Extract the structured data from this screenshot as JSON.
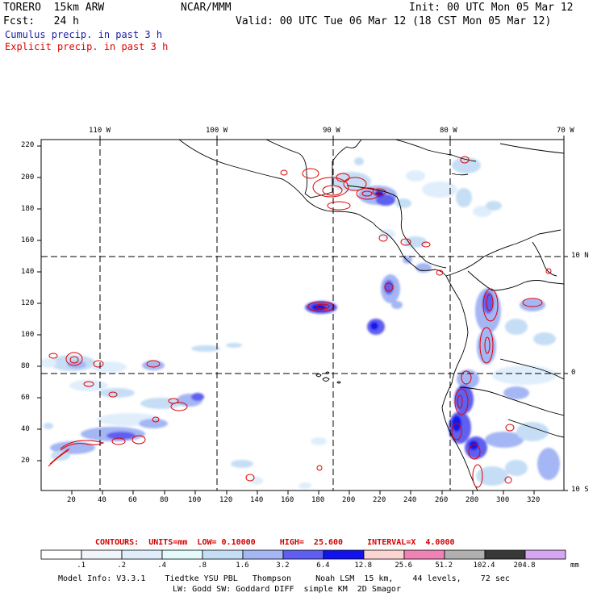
{
  "header": {
    "model": "TORERO  15km ARW",
    "center": "NCAR/MMM",
    "init": "Init: 00 UTC Mon 05 Mar 12",
    "fcst": "Fcst:   24 h",
    "valid": "Valid: 00 UTC Tue 06 Mar 12 (18 CST Mon 05 Mar 12)",
    "legend_cumulus": "Cumulus precip. in past 3 h",
    "legend_explicit": "Explicit precip. in past 3 h"
  },
  "map": {
    "lon_labels": [
      "110 W",
      "100 W",
      "90 W",
      "80 W",
      "70 W"
    ],
    "lat_labels": [
      "10 N",
      "0",
      "10 S"
    ],
    "y_ticks": [
      "220",
      "200",
      "180",
      "160",
      "140",
      "120",
      "100",
      "80",
      "60",
      "40",
      "20"
    ],
    "x_ticks": [
      "20",
      "40",
      "60",
      "80",
      "100",
      "120",
      "140",
      "160",
      "180",
      "200",
      "220",
      "240",
      "260",
      "280",
      "300",
      "320"
    ]
  },
  "contours": {
    "text": "CONTOURS:  UNITS=mm  LOW= 0.10000     HIGH=  25.600     INTERVAL=X  4.0000"
  },
  "colorbar": {
    "unit": "mm",
    "labels": [
      ".1",
      ".2",
      ".4",
      ".8",
      "1.6",
      "3.2",
      "6.4",
      "12.8",
      "25.6",
      "51.2",
      "102.4",
      "204.8"
    ],
    "colors": [
      "#ffffff",
      "#f0f4fb",
      "#e0eefc",
      "#e4fbfb",
      "#c5def6",
      "#a4b6f4",
      "#5e5ef0",
      "#1212ec",
      "#fcd4d4",
      "#f083b6",
      "#b0b0b0",
      "#383838",
      "#d6a6f2"
    ]
  },
  "footer": {
    "line1": "Model Info: V3.3.1    Tiedtke YSU PBL   Thompson     Noah LSM  15 km,    44 levels,    72 sec",
    "line2": "LW: Godd SW: Goddard DIFF  simple KM  2D Smagor"
  }
}
